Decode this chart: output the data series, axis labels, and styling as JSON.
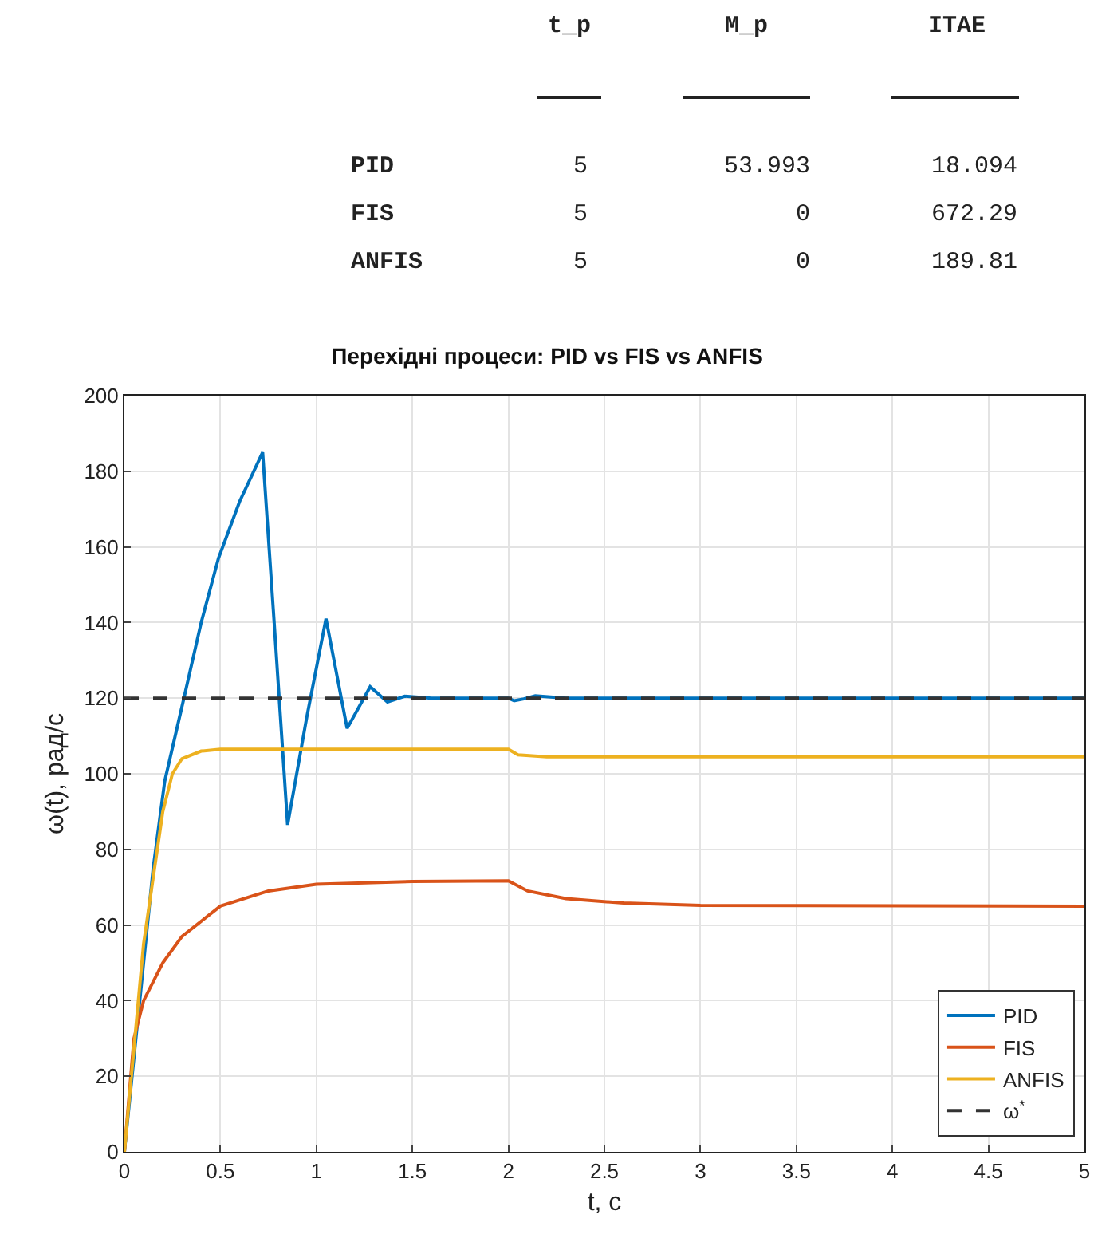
{
  "chart_data": {
    "type": "line",
    "title": "Перехідні процеси: PID vs FIS vs ANFIS",
    "xlabel": "t, с",
    "ylabel": "ω(t), рад/с",
    "annotations": [
      "t_p",
      "M_p",
      "ITAE",
      "PID",
      "5",
      "53.993",
      "18.094",
      "FIS",
      "5",
      "0",
      "672.29",
      "ANFIS",
      "5",
      "0",
      "189.81"
    ],
    "series": [
      {
        "name": "PID",
        "color": "#0072bd",
        "x": [
          0,
          0.05,
          0.1,
          0.15,
          0.21,
          0.31,
          0.4,
          0.49,
          0.6,
          0.72,
          0.78,
          0.85,
          0.95,
          1.05,
          1.16,
          1.28,
          1.37,
          1.46,
          1.6,
          2.0,
          2.03,
          2.08,
          2.14,
          2.3,
          5
        ],
        "values": [
          0,
          25,
          50,
          75,
          98,
          120,
          140,
          157,
          172,
          185,
          140,
          86.5,
          115,
          141,
          112,
          123,
          119,
          120.5,
          120,
          120,
          119.3,
          119.8,
          120.6,
          120,
          120
        ]
      },
      {
        "name": "FIS",
        "color": "#d95319",
        "x": [
          0,
          0.05,
          0.1,
          0.2,
          0.3,
          0.5,
          0.75,
          1.0,
          1.5,
          2.0,
          2.1,
          2.3,
          2.6,
          3.0,
          5
        ],
        "values": [
          0,
          30,
          40,
          50,
          57,
          65,
          69,
          70.8,
          71.5,
          71.7,
          69,
          67,
          65.8,
          65.2,
          65
        ]
      },
      {
        "name": "ANFIS",
        "color": "#edb120",
        "x": [
          0,
          0.1,
          0.2,
          0.25,
          0.3,
          0.4,
          0.5,
          2.0,
          2.05,
          2.2,
          5
        ],
        "values": [
          0,
          55,
          90,
          100,
          104,
          106,
          106.5,
          106.5,
          105,
          104.5,
          104.5
        ]
      },
      {
        "name": "ω$^{*}$",
        "color": "#333333",
        "line_style": "dashed",
        "x": [
          0,
          5
        ],
        "values": [
          120,
          120
        ]
      }
    ],
    "xlim": [
      0,
      5
    ],
    "xticks": [
      0,
      0.5,
      1,
      1.5,
      2,
      2.5,
      3,
      3.5,
      4,
      4.5,
      5
    ],
    "ylim": [
      0,
      200
    ],
    "yticks": [
      0,
      20,
      40,
      60,
      80,
      100,
      120,
      140,
      160,
      180,
      200
    ],
    "grid": true,
    "legend": "bottom right"
  }
}
